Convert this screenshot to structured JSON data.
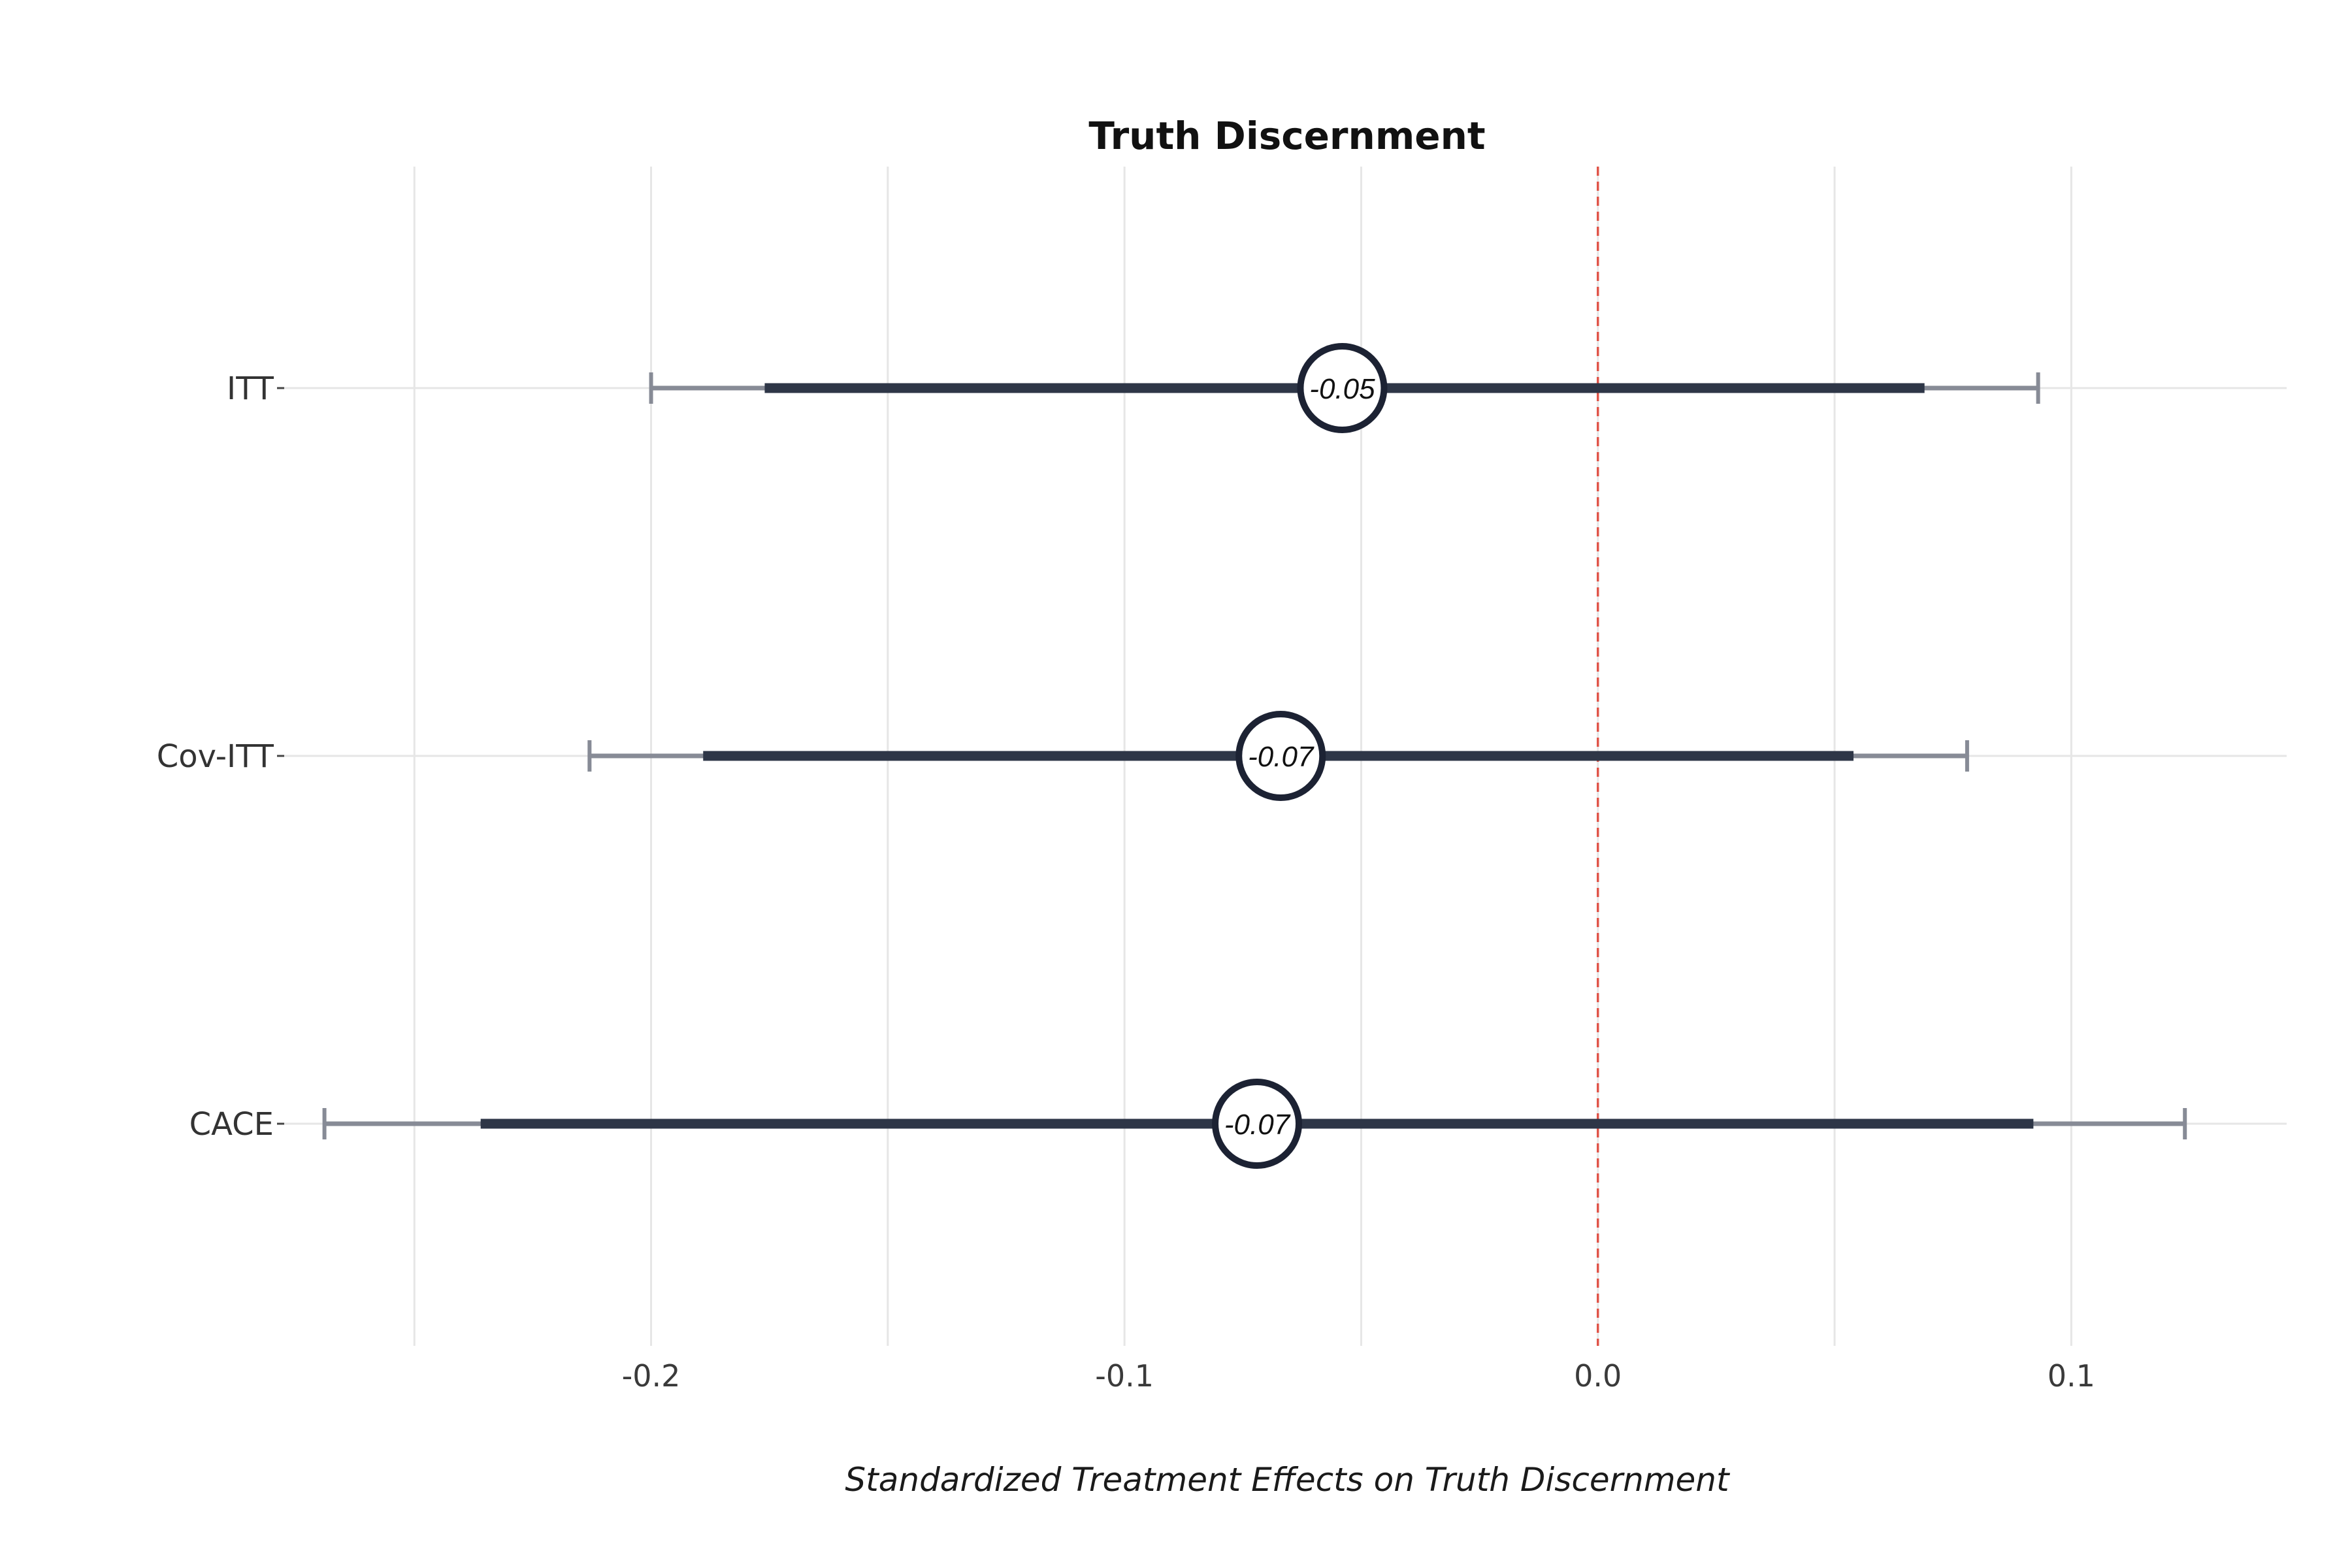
{
  "chart_data": {
    "type": "scatter",
    "title": "Truth Discernment",
    "xlabel": "Standardized Treatment Effects on Truth Discernment",
    "ylabel": "",
    "xlim": [
      -0.2775,
      0.1455
    ],
    "x_ticks": [
      -0.2,
      -0.1,
      0.0,
      0.1
    ],
    "x_tick_labels": [
      "-0.2",
      "-0.1",
      "0.0",
      "0.1"
    ],
    "x_minor_gridlines": [
      -0.25,
      -0.15,
      -0.05,
      0.05
    ],
    "grid": true,
    "reference_line": {
      "x": 0.0,
      "style": "dashed",
      "color": "#e0554a"
    },
    "categories": [
      "ITT",
      "Cov-ITT",
      "CACE"
    ],
    "series": [
      {
        "estimate": [
          -0.054,
          -0.067,
          -0.072
        ],
        "estimate_labels": [
          "-0.05",
          "-0.07",
          "-0.07"
        ],
        "ci90_low": [
          -0.176,
          -0.189,
          -0.236
        ],
        "ci90_high": [
          0.069,
          0.054,
          0.092
        ],
        "ci95_low": [
          -0.2,
          -0.213,
          -0.269
        ],
        "ci95_high": [
          0.093,
          0.078,
          0.124
        ]
      }
    ],
    "colors": {
      "inner_interval": "#2e3647",
      "outer_interval": "#878b96",
      "marker_stroke": "#1c2233",
      "marker_fill": "#ffffff",
      "gridline": "#e6e6e6"
    }
  }
}
